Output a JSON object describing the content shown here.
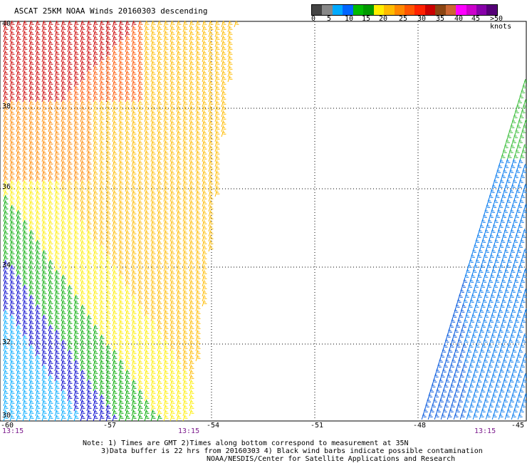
{
  "title": "ASCAT 25KM NOAA Winds 20160303 descending",
  "legend": {
    "colors": [
      "#444444",
      "#888888",
      "#00aaff",
      "#0066ff",
      "#00bb00",
      "#009900",
      "#ffee00",
      "#ffbb00",
      "#ff8800",
      "#ff5500",
      "#ff2200",
      "#cc0000",
      "#8b4513",
      "#cc6633",
      "#ff00ff",
      "#cc00cc",
      "#8800aa",
      "#550077"
    ],
    "labels": [
      "0",
      "5",
      "10",
      "15",
      "20",
      "25",
      "30",
      "35",
      "40",
      "45",
      ">50 knots"
    ]
  },
  "latitudes": [
    "40",
    "38",
    "36",
    "34",
    "32",
    "30"
  ],
  "longitudes": [
    "-60",
    "-57",
    "-54",
    "-51",
    "-48",
    "-45"
  ],
  "times": [
    "13:15",
    "13:15",
    "13:15"
  ],
  "notes": [
    "Note: 1) Times are GMT 2)Times along bottom correspond to measurement at 35N",
    "3)Data buffer is 22 hrs from 20160303 4) Black wind barbs indicate possible contamination",
    "NOAA/NESDIS/Center for Satellite Applications and Research"
  ]
}
